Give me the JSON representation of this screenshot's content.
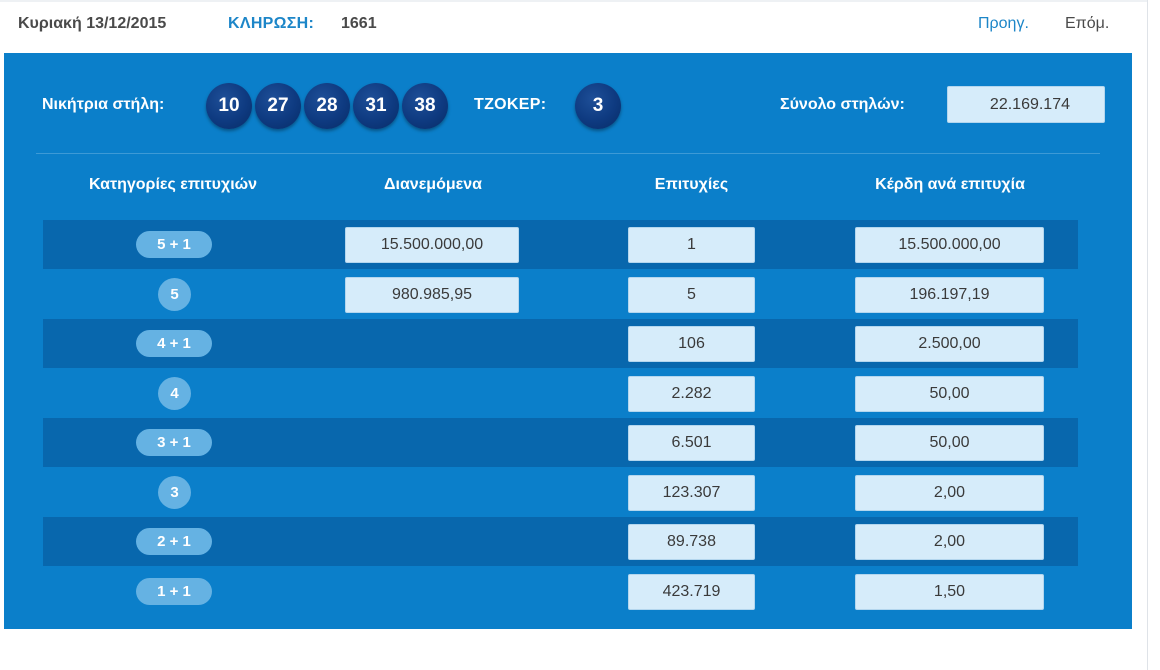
{
  "header": {
    "date": "Κυριακή 13/12/2015",
    "draw_label": "ΚΛΗΡΩΣΗ:",
    "draw_number": "1661",
    "prev_label": "Προηγ.",
    "next_label": "Επόμ."
  },
  "winning": {
    "label": "Νικήτρια στήλη:",
    "numbers": [
      "10",
      "27",
      "28",
      "31",
      "38"
    ],
    "joker_label": "ΤΖΟΚΕΡ:",
    "joker": "3",
    "total_label": "Σύνολο στηλών:",
    "total_value": "22.169.174"
  },
  "table": {
    "headers": {
      "category": "Κατηγορίες επιτυχιών",
      "distributed": "Διανεμόμενα",
      "winners": "Επιτυχίες",
      "prize": "Κέρδη ανά επιτυχία"
    },
    "rows": [
      {
        "category": "5 + 1",
        "distributed": "15.500.000,00",
        "winners": "1",
        "prize": "15.500.000,00"
      },
      {
        "category": "5",
        "distributed": "980.985,95",
        "winners": "5",
        "prize": "196.197,19"
      },
      {
        "category": "4 + 1",
        "distributed": "",
        "winners": "106",
        "prize": "2.500,00"
      },
      {
        "category": "4",
        "distributed": "",
        "winners": "2.282",
        "prize": "50,00"
      },
      {
        "category": "3 + 1",
        "distributed": "",
        "winners": "6.501",
        "prize": "50,00"
      },
      {
        "category": "3",
        "distributed": "",
        "winners": "123.307",
        "prize": "2,00"
      },
      {
        "category": "2 + 1",
        "distributed": "",
        "winners": "89.738",
        "prize": "2,00"
      },
      {
        "category": "1 + 1",
        "distributed": "",
        "winners": "423.719",
        "prize": "1,50"
      }
    ]
  },
  "colors": {
    "panel": "#0b7fca",
    "row_dark": "#0867ad",
    "ball": "#0e3a80",
    "category_pill": "#65b2e3",
    "value_box": "#d6ecfa",
    "link": "#1d86c8"
  }
}
